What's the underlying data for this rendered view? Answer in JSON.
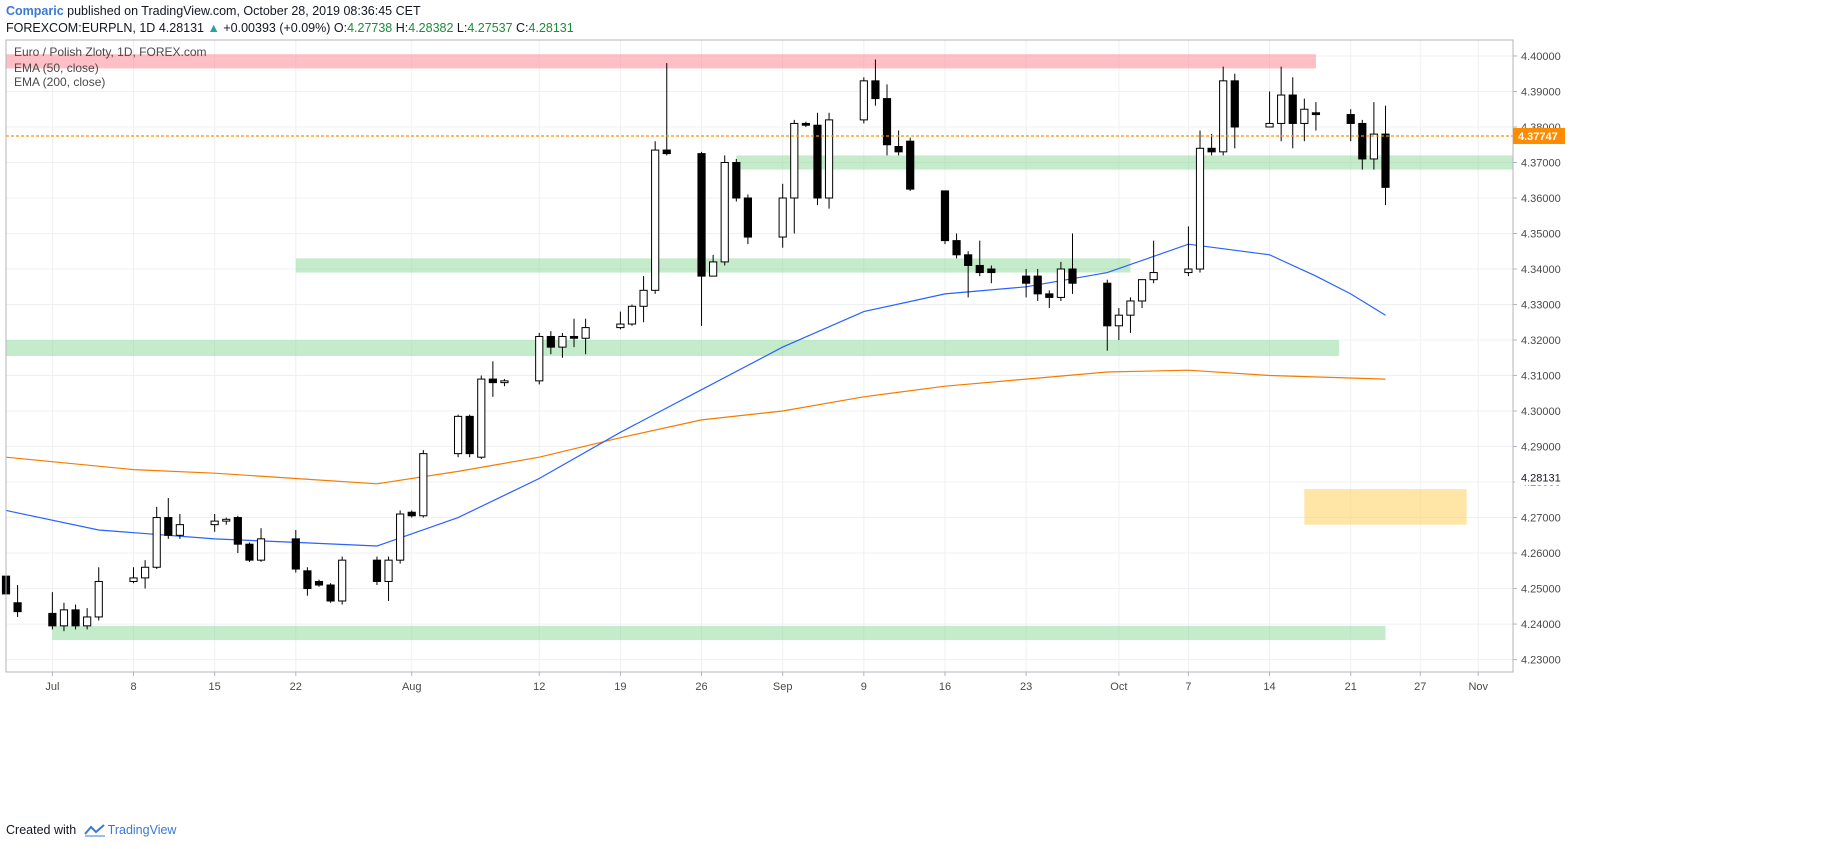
{
  "header": {
    "author": "Comparic",
    "published": "published on TradingView.com, October 28, 2019 08:36:45 CET",
    "symbol": "FOREXCOM:EURPLN, 1D",
    "last": "4.28131",
    "arrow": "▲",
    "change": "+0.00393 (+0.09%)",
    "o_label": "O:",
    "o_value": "4.27738",
    "h_label": "H:",
    "h_value": "4.28382",
    "l_label": "L:",
    "l_value": "4.27537",
    "c_label": "C:",
    "c_value": "4.28131"
  },
  "footer": {
    "created_with": "Created with",
    "brand": "TradingView",
    "icon": "tradingview-logo-icon"
  },
  "colors": {
    "up_fill": "#ffffff",
    "down_fill": "#000000",
    "candle_outline": "#000000",
    "ema50": "#2962ff",
    "ema200": "#f57c00",
    "resistance": "#ff8a95",
    "support": "#7fd48a",
    "target": "#ffd36a",
    "price_line": "#ff8c00",
    "price_tag_bg": "#ff8c00"
  },
  "chart_data": {
    "type": "candlestick",
    "title": "Euro / Polish Zloty, 1D, FOREX.com",
    "legend": [
      "EMA (50, close)",
      "EMA (200, close)"
    ],
    "legend_position": "top-left",
    "grid": true,
    "ylim": [
      4.2265,
      4.4045
    ],
    "y_ticks": [
      "4.23000",
      "4.24000",
      "4.25000",
      "4.26000",
      "4.27000",
      "4.28000",
      "4.29000",
      "4.30000",
      "4.31000",
      "4.32000",
      "4.33000",
      "4.34000",
      "4.35000",
      "4.36000",
      "4.37000",
      "4.38000",
      "4.39000",
      "4.40000"
    ],
    "x_ticks": [
      {
        "label": "Jul",
        "date": "2019-07-01"
      },
      {
        "label": "8",
        "date": "2019-07-08"
      },
      {
        "label": "15",
        "date": "2019-07-15"
      },
      {
        "label": "22",
        "date": "2019-07-22"
      },
      {
        "label": "Aug",
        "date": "2019-08-01"
      },
      {
        "label": "12",
        "date": "2019-08-12"
      },
      {
        "label": "19",
        "date": "2019-08-19"
      },
      {
        "label": "26",
        "date": "2019-08-26"
      },
      {
        "label": "Sep",
        "date": "2019-09-02"
      },
      {
        "label": "9",
        "date": "2019-09-09"
      },
      {
        "label": "16",
        "date": "2019-09-16"
      },
      {
        "label": "23",
        "date": "2019-09-23"
      },
      {
        "label": "Oct",
        "date": "2019-10-01"
      },
      {
        "label": "7",
        "date": "2019-10-07"
      },
      {
        "label": "14",
        "date": "2019-10-14"
      },
      {
        "label": "21",
        "date": "2019-10-21"
      },
      {
        "label": "27",
        "date": "2019-10-27"
      },
      {
        "label": "Nov",
        "date": "2019-11-01"
      }
    ],
    "xlim": [
      "2019-06-27",
      "2019-11-04"
    ],
    "candles": [
      {
        "d": "2019-06-27",
        "o": 4.2535,
        "h": 4.256,
        "l": 4.244,
        "c": 4.2485
      },
      {
        "d": "2019-06-28",
        "o": 4.246,
        "h": 4.251,
        "l": 4.242,
        "c": 4.2435
      },
      {
        "d": "2019-07-01",
        "o": 4.243,
        "h": 4.249,
        "l": 4.2385,
        "c": 4.2395
      },
      {
        "d": "2019-07-02",
        "o": 4.2395,
        "h": 4.246,
        "l": 4.238,
        "c": 4.244
      },
      {
        "d": "2019-07-03",
        "o": 4.244,
        "h": 4.2455,
        "l": 4.2385,
        "c": 4.2395
      },
      {
        "d": "2019-07-04",
        "o": 4.2395,
        "h": 4.2445,
        "l": 4.2385,
        "c": 4.242
      },
      {
        "d": "2019-07-05",
        "o": 4.242,
        "h": 4.256,
        "l": 4.241,
        "c": 4.252
      },
      {
        "d": "2019-07-08",
        "o": 4.252,
        "h": 4.256,
        "l": 4.2515,
        "c": 4.253
      },
      {
        "d": "2019-07-09",
        "o": 4.253,
        "h": 4.258,
        "l": 4.25,
        "c": 4.256
      },
      {
        "d": "2019-07-10",
        "o": 4.256,
        "h": 4.273,
        "l": 4.2555,
        "c": 4.27
      },
      {
        "d": "2019-07-11",
        "o": 4.27,
        "h": 4.2755,
        "l": 4.264,
        "c": 4.265
      },
      {
        "d": "2019-07-12",
        "o": 4.265,
        "h": 4.271,
        "l": 4.264,
        "c": 4.268
      },
      {
        "d": "2019-07-15",
        "o": 4.268,
        "h": 4.271,
        "l": 4.266,
        "c": 4.269
      },
      {
        "d": "2019-07-16",
        "o": 4.269,
        "h": 4.27,
        "l": 4.268,
        "c": 4.2695
      },
      {
        "d": "2019-07-17",
        "o": 4.27,
        "h": 4.2705,
        "l": 4.26,
        "c": 4.2625
      },
      {
        "d": "2019-07-18",
        "o": 4.2625,
        "h": 4.263,
        "l": 4.2575,
        "c": 4.258
      },
      {
        "d": "2019-07-19",
        "o": 4.258,
        "h": 4.267,
        "l": 4.2575,
        "c": 4.264
      },
      {
        "d": "2019-07-22",
        "o": 4.264,
        "h": 4.2665,
        "l": 4.2545,
        "c": 4.2555
      },
      {
        "d": "2019-07-23",
        "o": 4.255,
        "h": 4.256,
        "l": 4.248,
        "c": 4.25
      },
      {
        "d": "2019-07-24",
        "o": 4.252,
        "h": 4.2525,
        "l": 4.2505,
        "c": 4.251
      },
      {
        "d": "2019-07-25",
        "o": 4.251,
        "h": 4.2515,
        "l": 4.246,
        "c": 4.2465
      },
      {
        "d": "2019-07-26",
        "o": 4.2465,
        "h": 4.259,
        "l": 4.2455,
        "c": 4.258
      },
      {
        "d": "2019-07-29",
        "o": 4.258,
        "h": 4.259,
        "l": 4.251,
        "c": 4.252
      },
      {
        "d": "2019-07-30",
        "o": 4.252,
        "h": 4.259,
        "l": 4.2465,
        "c": 4.258
      },
      {
        "d": "2019-07-31",
        "o": 4.258,
        "h": 4.272,
        "l": 4.257,
        "c": 4.271
      },
      {
        "d": "2019-08-01",
        "o": 4.2715,
        "h": 4.272,
        "l": 4.27,
        "c": 4.2705
      },
      {
        "d": "2019-08-02",
        "o": 4.2705,
        "h": 4.289,
        "l": 4.27,
        "c": 4.288
      },
      {
        "d": "2019-08-05",
        "o": 4.288,
        "h": 4.299,
        "l": 4.287,
        "c": 4.2985
      },
      {
        "d": "2019-08-06",
        "o": 4.2985,
        "h": 4.299,
        "l": 4.287,
        "c": 4.288
      },
      {
        "d": "2019-08-07",
        "o": 4.287,
        "h": 4.31,
        "l": 4.2865,
        "c": 4.309
      },
      {
        "d": "2019-08-08",
        "o": 4.309,
        "h": 4.314,
        "l": 4.304,
        "c": 4.308
      },
      {
        "d": "2019-08-09",
        "o": 4.308,
        "h": 4.309,
        "l": 4.307,
        "c": 4.3085
      },
      {
        "d": "2019-08-12",
        "o": 4.3085,
        "h": 4.322,
        "l": 4.3075,
        "c": 4.321
      },
      {
        "d": "2019-08-13",
        "o": 4.321,
        "h": 4.3225,
        "l": 4.316,
        "c": 4.318
      },
      {
        "d": "2019-08-14",
        "o": 4.318,
        "h": 4.322,
        "l": 4.315,
        "c": 4.321
      },
      {
        "d": "2019-08-15",
        "o": 4.321,
        "h": 4.326,
        "l": 4.318,
        "c": 4.3205
      },
      {
        "d": "2019-08-16",
        "o": 4.3205,
        "h": 4.326,
        "l": 4.316,
        "c": 4.3235
      },
      {
        "d": "2019-08-19",
        "o": 4.3235,
        "h": 4.328,
        "l": 4.323,
        "c": 4.3245
      },
      {
        "d": "2019-08-20",
        "o": 4.3245,
        "h": 4.33,
        "l": 4.324,
        "c": 4.3295
      },
      {
        "d": "2019-08-21",
        "o": 4.3295,
        "h": 4.338,
        "l": 4.325,
        "c": 4.334
      },
      {
        "d": "2019-08-22",
        "o": 4.334,
        "h": 4.376,
        "l": 4.333,
        "c": 4.3735
      },
      {
        "d": "2019-08-23",
        "o": 4.3735,
        "h": 4.398,
        "l": 4.372,
        "c": 4.3725
      },
      {
        "d": "2019-08-26",
        "o": 4.3725,
        "h": 4.373,
        "l": 4.324,
        "c": 4.338
      },
      {
        "d": "2019-08-27",
        "o": 4.338,
        "h": 4.344,
        "l": 4.338,
        "c": 4.342
      },
      {
        "d": "2019-08-28",
        "o": 4.342,
        "h": 4.372,
        "l": 4.341,
        "c": 4.37
      },
      {
        "d": "2019-08-29",
        "o": 4.37,
        "h": 4.371,
        "l": 4.359,
        "c": 4.36
      },
      {
        "d": "2019-08-30",
        "o": 4.36,
        "h": 4.361,
        "l": 4.347,
        "c": 4.349
      },
      {
        "d": "2019-09-02",
        "o": 4.349,
        "h": 4.364,
        "l": 4.346,
        "c": 4.36
      },
      {
        "d": "2019-09-03",
        "o": 4.36,
        "h": 4.382,
        "l": 4.35,
        "c": 4.381
      },
      {
        "d": "2019-09-04",
        "o": 4.381,
        "h": 4.3815,
        "l": 4.38,
        "c": 4.3805
      },
      {
        "d": "2019-09-05",
        "o": 4.3805,
        "h": 4.384,
        "l": 4.358,
        "c": 4.36
      },
      {
        "d": "2019-09-06",
        "o": 4.36,
        "h": 4.384,
        "l": 4.357,
        "c": 4.382
      },
      {
        "d": "2019-09-09",
        "o": 4.382,
        "h": 4.394,
        "l": 4.381,
        "c": 4.393
      },
      {
        "d": "2019-09-10",
        "o": 4.393,
        "h": 4.399,
        "l": 4.386,
        "c": 4.388
      },
      {
        "d": "2019-09-11",
        "o": 4.388,
        "h": 4.392,
        "l": 4.372,
        "c": 4.375
      },
      {
        "d": "2019-09-12",
        "o": 4.3745,
        "h": 4.379,
        "l": 4.372,
        "c": 4.373
      },
      {
        "d": "2019-09-13",
        "o": 4.376,
        "h": 4.377,
        "l": 4.362,
        "c": 4.3625
      },
      {
        "d": "2019-09-16",
        "o": 4.362,
        "h": 4.362,
        "l": 4.347,
        "c": 4.348
      },
      {
        "d": "2019-09-17",
        "o": 4.348,
        "h": 4.35,
        "l": 4.343,
        "c": 4.344
      },
      {
        "d": "2019-09-18",
        "o": 4.344,
        "h": 4.345,
        "l": 4.332,
        "c": 4.341
      },
      {
        "d": "2019-09-19",
        "o": 4.341,
        "h": 4.348,
        "l": 4.338,
        "c": 4.339
      },
      {
        "d": "2019-09-20",
        "o": 4.34,
        "h": 4.341,
        "l": 4.336,
        "c": 4.339
      },
      {
        "d": "2019-09-23",
        "o": 4.338,
        "h": 4.34,
        "l": 4.332,
        "c": 4.336
      },
      {
        "d": "2019-09-24",
        "o": 4.338,
        "h": 4.34,
        "l": 4.331,
        "c": 4.333
      },
      {
        "d": "2019-09-25",
        "o": 4.333,
        "h": 4.334,
        "l": 4.329,
        "c": 4.332
      },
      {
        "d": "2019-09-26",
        "o": 4.332,
        "h": 4.342,
        "l": 4.331,
        "c": 4.34
      },
      {
        "d": "2019-09-27",
        "o": 4.34,
        "h": 4.35,
        "l": 4.333,
        "c": 4.336
      },
      {
        "d": "2019-09-30",
        "o": 4.336,
        "h": 4.337,
        "l": 4.317,
        "c": 4.324
      },
      {
        "d": "2019-10-01",
        "o": 4.324,
        "h": 4.329,
        "l": 4.32,
        "c": 4.327
      },
      {
        "d": "2019-10-02",
        "o": 4.327,
        "h": 4.332,
        "l": 4.322,
        "c": 4.331
      },
      {
        "d": "2019-10-03",
        "o": 4.331,
        "h": 4.337,
        "l": 4.329,
        "c": 4.337
      },
      {
        "d": "2019-10-04",
        "o": 4.337,
        "h": 4.348,
        "l": 4.336,
        "c": 4.339
      },
      {
        "d": "2019-10-07",
        "o": 4.339,
        "h": 4.352,
        "l": 4.338,
        "c": 4.34
      },
      {
        "d": "2019-10-08",
        "o": 4.34,
        "h": 4.379,
        "l": 4.339,
        "c": 4.374
      },
      {
        "d": "2019-10-09",
        "o": 4.374,
        "h": 4.378,
        "l": 4.372,
        "c": 4.373
      },
      {
        "d": "2019-10-10",
        "o": 4.373,
        "h": 4.397,
        "l": 4.372,
        "c": 4.393
      },
      {
        "d": "2019-10-11",
        "o": 4.393,
        "h": 4.395,
        "l": 4.374,
        "c": 4.38
      },
      {
        "d": "2019-10-14",
        "o": 4.38,
        "h": 4.39,
        "l": 4.38,
        "c": 4.381
      },
      {
        "d": "2019-10-15",
        "o": 4.381,
        "h": 4.397,
        "l": 4.376,
        "c": 4.389
      },
      {
        "d": "2019-10-16",
        "o": 4.389,
        "h": 4.394,
        "l": 4.374,
        "c": 4.381
      },
      {
        "d": "2019-10-17",
        "o": 4.381,
        "h": 4.388,
        "l": 4.376,
        "c": 4.385
      },
      {
        "d": "2019-10-18",
        "o": 4.384,
        "h": 4.387,
        "l": 4.379,
        "c": 4.3835
      },
      {
        "d": "2019-10-21",
        "o": 4.3835,
        "h": 4.385,
        "l": 4.376,
        "c": 4.381
      },
      {
        "d": "2019-10-22",
        "o": 4.381,
        "h": 4.382,
        "l": 4.368,
        "c": 4.371
      },
      {
        "d": "2019-10-23",
        "o": 4.371,
        "h": 4.387,
        "l": 4.368,
        "c": 4.378
      },
      {
        "d": "2019-10-24",
        "o": 4.378,
        "h": 4.386,
        "l": 4.358,
        "c": 4.363
      }
    ],
    "ema50": [
      {
        "d": "2019-06-27",
        "v": 4.272
      },
      {
        "d": "2019-07-05",
        "v": 4.2665
      },
      {
        "d": "2019-07-15",
        "v": 4.264
      },
      {
        "d": "2019-07-22",
        "v": 4.263
      },
      {
        "d": "2019-07-29",
        "v": 4.262
      },
      {
        "d": "2019-08-05",
        "v": 4.27
      },
      {
        "d": "2019-08-12",
        "v": 4.281
      },
      {
        "d": "2019-08-19",
        "v": 4.294
      },
      {
        "d": "2019-08-26",
        "v": 4.306
      },
      {
        "d": "2019-09-02",
        "v": 4.318
      },
      {
        "d": "2019-09-09",
        "v": 4.328
      },
      {
        "d": "2019-09-16",
        "v": 4.333
      },
      {
        "d": "2019-09-23",
        "v": 4.335
      },
      {
        "d": "2019-09-30",
        "v": 4.339
      },
      {
        "d": "2019-10-07",
        "v": 4.347
      },
      {
        "d": "2019-10-14",
        "v": 4.344
      },
      {
        "d": "2019-10-18",
        "v": 4.338
      },
      {
        "d": "2019-10-21",
        "v": 4.333
      },
      {
        "d": "2019-10-24",
        "v": 4.327
      }
    ],
    "ema200": [
      {
        "d": "2019-06-27",
        "v": 4.287
      },
      {
        "d": "2019-07-08",
        "v": 4.2835
      },
      {
        "d": "2019-07-15",
        "v": 4.2825
      },
      {
        "d": "2019-07-22",
        "v": 4.281
      },
      {
        "d": "2019-07-29",
        "v": 4.2795
      },
      {
        "d": "2019-08-05",
        "v": 4.283
      },
      {
        "d": "2019-08-12",
        "v": 4.287
      },
      {
        "d": "2019-08-19",
        "v": 4.2925
      },
      {
        "d": "2019-08-26",
        "v": 4.2975
      },
      {
        "d": "2019-09-02",
        "v": 4.3
      },
      {
        "d": "2019-09-09",
        "v": 4.304
      },
      {
        "d": "2019-09-16",
        "v": 4.307
      },
      {
        "d": "2019-09-23",
        "v": 4.309
      },
      {
        "d": "2019-09-30",
        "v": 4.311
      },
      {
        "d": "2019-10-07",
        "v": 4.3115
      },
      {
        "d": "2019-10-14",
        "v": 4.31
      },
      {
        "d": "2019-10-24",
        "v": 4.309
      }
    ],
    "zones": [
      {
        "kind": "resistance",
        "from": "2019-06-27",
        "to": "2019-10-18",
        "low": 4.3965,
        "high": 4.4005
      },
      {
        "kind": "support",
        "from": "2019-08-29",
        "to": "2019-11-04",
        "low": 4.368,
        "high": 4.372
      },
      {
        "kind": "support",
        "from": "2019-07-22",
        "to": "2019-10-02",
        "low": 4.339,
        "high": 4.343
      },
      {
        "kind": "support",
        "from": "2019-06-27",
        "to": "2019-10-20",
        "low": 4.3155,
        "high": 4.32
      },
      {
        "kind": "support",
        "from": "2019-07-01",
        "to": "2019-10-24",
        "low": 4.2355,
        "high": 4.2395
      },
      {
        "kind": "target",
        "from": "2019-10-17",
        "to": "2019-10-31",
        "low": 4.268,
        "high": 4.278
      }
    ],
    "price_line": {
      "value": 4.37747,
      "label": "4.37747"
    },
    "last_price_label": {
      "value": 4.28131,
      "label": "4.28131"
    }
  }
}
